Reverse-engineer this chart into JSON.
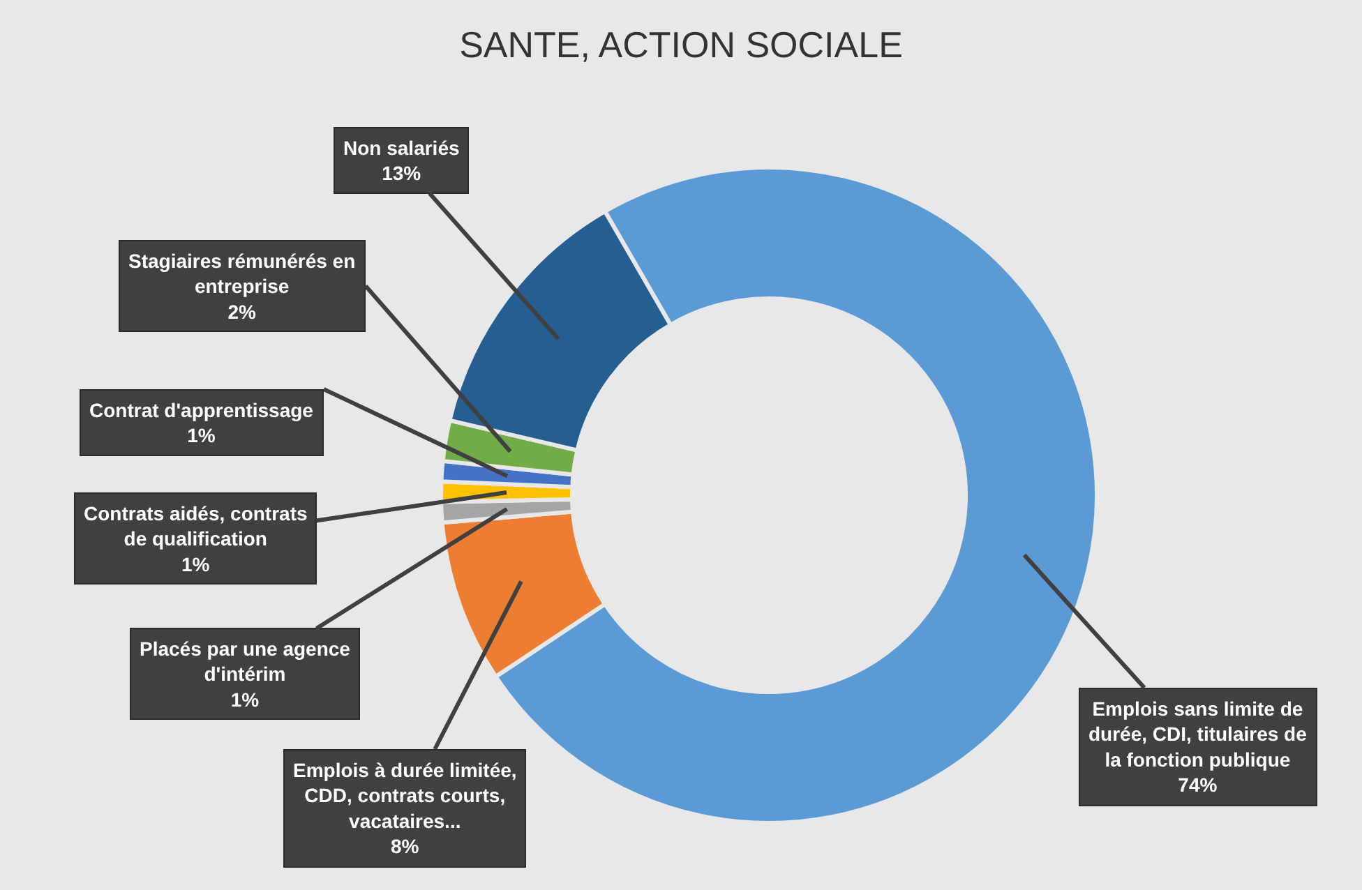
{
  "chart_data": {
    "type": "donut",
    "title": "SANTE, ACTION SOCIALE",
    "categories": [
      "Emplois sans limite de durée, CDI, titulaires de la fonction publique",
      "Emplois à durée limitée, CDD, contrats courts, vacataires...",
      "Placés par une agence d'intérim",
      "Contrats aidés, contrats de qualification",
      "Contrat d'apprentissage",
      "Stagiaires rémunérés en entreprise",
      "Non salariés"
    ],
    "values": [
      74,
      8,
      1,
      1,
      1,
      2,
      13
    ],
    "colors": [
      "#5b9bd5",
      "#ed7d31",
      "#a5a5a5",
      "#ffc000",
      "#4472c4",
      "#70ad47",
      "#255e91"
    ],
    "value_labels": [
      "74%",
      "8%",
      "1%",
      "1%",
      "1%",
      "2%",
      "13%"
    ]
  }
}
